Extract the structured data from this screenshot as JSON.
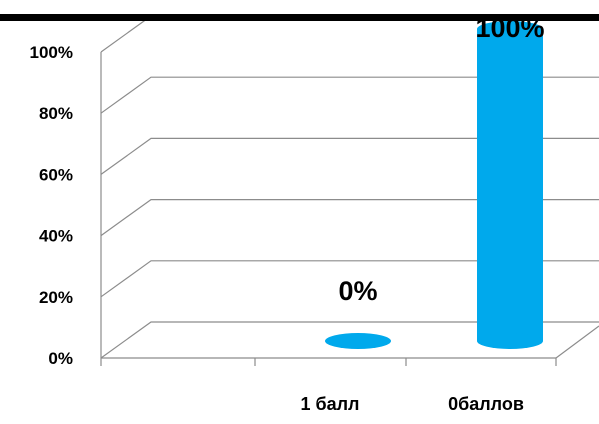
{
  "chart_data": {
    "type": "bar",
    "title": "",
    "xlabel": "",
    "ylabel": "",
    "categories": [
      "1 балл",
      "0баллов"
    ],
    "values": [
      0,
      100
    ],
    "data_labels": [
      "0%",
      "100%"
    ],
    "ylim": [
      0,
      100
    ],
    "y_ticks": [
      0,
      20,
      40,
      60,
      80,
      100
    ],
    "y_tick_labels": [
      "0%",
      "20%",
      "40%",
      "60%",
      "80%",
      "100%"
    ],
    "grid": true,
    "legend": "none",
    "bar_color": "#00a9ec",
    "style": "3d-cylinder"
  }
}
